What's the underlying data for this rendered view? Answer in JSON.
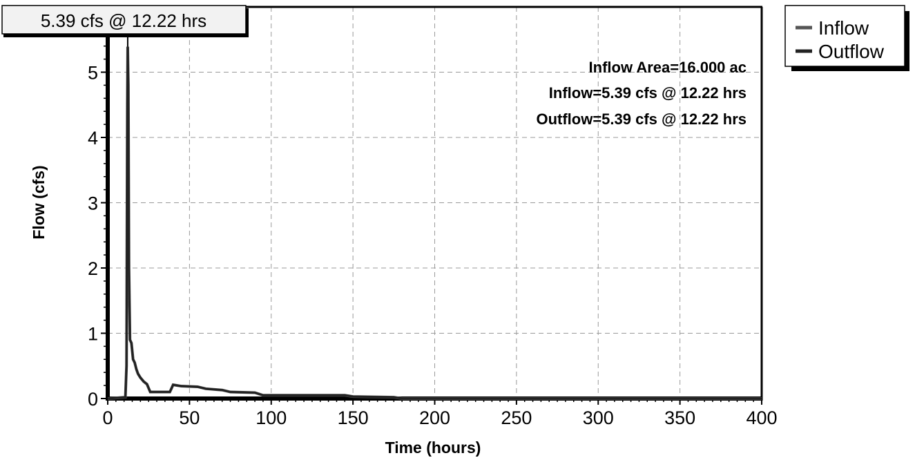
{
  "chart_data": {
    "type": "line",
    "xlabel": "Time  (hours)",
    "ylabel": "Flow  (cfs)",
    "xlim": [
      0,
      400
    ],
    "ylim": [
      0,
      6
    ],
    "x_ticks": [
      0,
      50,
      100,
      150,
      200,
      250,
      300,
      350,
      400
    ],
    "y_ticks": [
      0,
      1,
      2,
      3,
      4,
      5
    ],
    "grid": true,
    "legend_position": "top-right outside",
    "peak_label": "5.39 cfs @ 12.22 hrs",
    "annotations": [
      "Inflow Area=16.000 ac",
      "Inflow=5.39 cfs @ 12.22 hrs",
      "Outflow=5.39 cfs @ 12.22 hrs"
    ],
    "series": [
      {
        "name": "Inflow",
        "color": "#555555",
        "x": [
          0,
          10.8,
          11.5,
          12.0,
          12.22,
          12.6,
          13.0,
          13.6,
          14.5,
          15.5,
          16.5,
          17.5,
          18.5,
          20,
          22,
          24,
          26,
          30,
          38,
          40,
          45,
          55,
          60,
          70,
          75,
          90,
          95,
          145,
          150,
          175,
          180,
          400
        ],
        "y": [
          0,
          0.02,
          0.5,
          4.5,
          5.39,
          4.8,
          2.0,
          0.9,
          0.85,
          0.6,
          0.55,
          0.45,
          0.38,
          0.32,
          0.26,
          0.22,
          0.1,
          0.1,
          0.1,
          0.21,
          0.19,
          0.18,
          0.15,
          0.13,
          0.1,
          0.09,
          0.05,
          0.05,
          0.03,
          0.02,
          0.0,
          0.0
        ]
      },
      {
        "name": "Outflow",
        "color": "#222222",
        "x": [
          0,
          10.8,
          11.5,
          12.0,
          12.22,
          12.6,
          13.0,
          13.6,
          14.5,
          15.5,
          16.5,
          17.5,
          18.5,
          20,
          22,
          24,
          26,
          30,
          38,
          40,
          45,
          55,
          60,
          70,
          75,
          90,
          95,
          145,
          150,
          175,
          180,
          400
        ],
        "y": [
          0,
          0.02,
          0.5,
          4.5,
          5.39,
          4.8,
          2.0,
          0.9,
          0.85,
          0.6,
          0.55,
          0.45,
          0.38,
          0.32,
          0.26,
          0.22,
          0.1,
          0.1,
          0.1,
          0.21,
          0.19,
          0.18,
          0.15,
          0.13,
          0.1,
          0.09,
          0.05,
          0.05,
          0.03,
          0.02,
          0.0,
          0.0
        ]
      }
    ]
  }
}
